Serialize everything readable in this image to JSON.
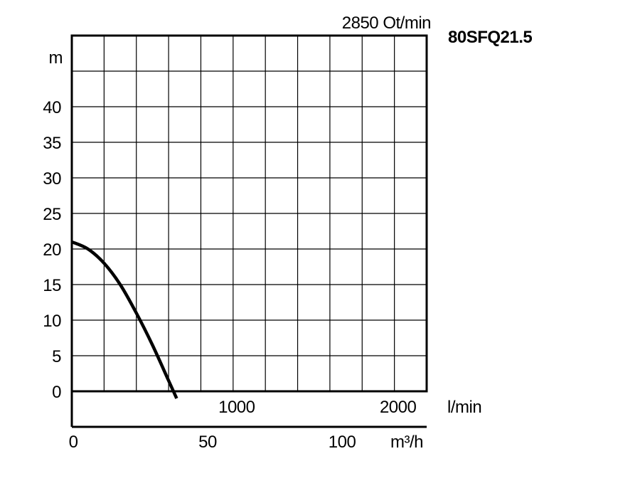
{
  "chart_data": {
    "type": "line",
    "title": "80SFQ21.5",
    "subtitle": "2850 Ot/min",
    "ylabel": "m",
    "xlabel_primary": "l/min",
    "xlabel_secondary": "m³/h",
    "ylim": [
      0,
      50
    ],
    "xlim_lmin": [
      0,
      2200
    ],
    "y_ticks": [
      "0",
      "5",
      "10",
      "15",
      "20",
      "25",
      "30",
      "35",
      "40"
    ],
    "y_tick_values": [
      0,
      5,
      10,
      15,
      20,
      25,
      30,
      35,
      40
    ],
    "x_ticks_lmin": [
      "1000",
      "2000"
    ],
    "x_tick_values_lmin": [
      1000,
      2000
    ],
    "x_ticks_m3h": [
      "0",
      "50",
      "100"
    ],
    "x_tick_values_m3h": [
      0,
      50,
      100
    ],
    "grid": true,
    "series": [
      {
        "x": [
          0,
          100,
          200,
          300,
          400,
          500,
          600,
          650
        ],
        "y": [
          21,
          20,
          18,
          15,
          11,
          6.5,
          1.5,
          -1
        ]
      }
    ]
  }
}
